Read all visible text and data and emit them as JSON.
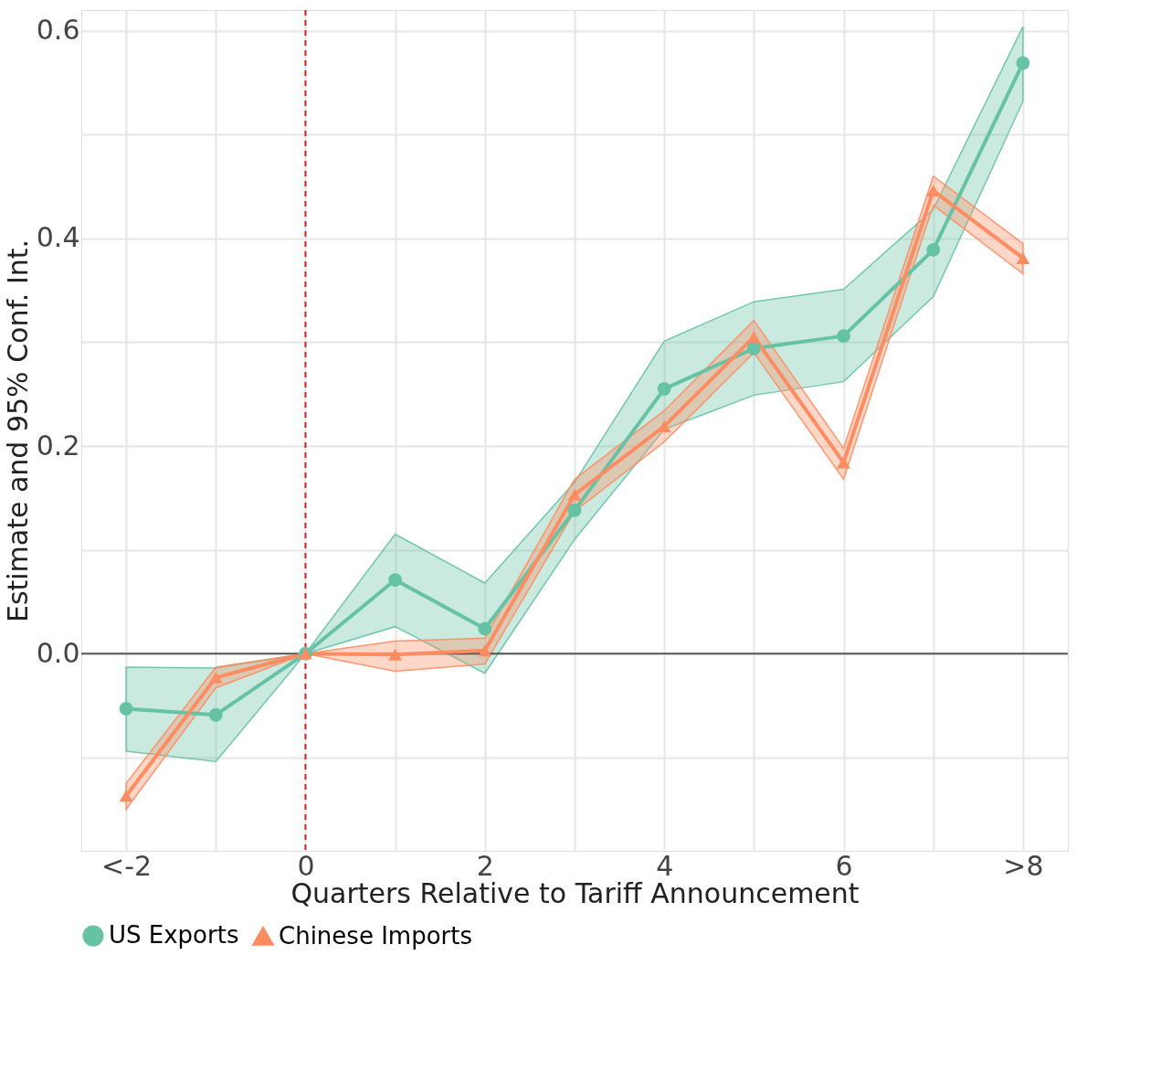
{
  "chart_data": {
    "type": "line",
    "xlabel": "Quarters Relative to Tariff Announcement",
    "ylabel": "Estimate and 95% Conf. Int.",
    "x": [
      -2,
      -1,
      0,
      1,
      2,
      3,
      4,
      5,
      6,
      7,
      8
    ],
    "xlim": [
      -2.5,
      8.5
    ],
    "xticks": [
      {
        "value": -2,
        "label": "<-2"
      },
      {
        "value": -1,
        "label": null
      },
      0,
      {
        "value": 1,
        "label": null
      },
      2,
      {
        "value": 3,
        "label": null
      },
      4,
      {
        "value": 5,
        "label": null
      },
      6,
      {
        "value": 7,
        "label": null
      },
      {
        "value": 8,
        "label": ">8"
      }
    ],
    "ylim": [
      -0.19,
      0.62
    ],
    "yticks": [
      {
        "value": -0.1,
        "label": null
      },
      {
        "value": 0,
        "label": "0.0"
      },
      {
        "value": 0.1,
        "label": null
      },
      0.2,
      {
        "value": 0.3,
        "label": null
      },
      0.4,
      {
        "value": 0.5,
        "label": null
      },
      0.6
    ],
    "series": [
      {
        "name": "US Exports",
        "color": "#66c2a5",
        "marker": "circle",
        "values": [
          -0.053,
          -0.059,
          0,
          0.071,
          0.024,
          0.138,
          0.255,
          0.294,
          0.306,
          0.389,
          0.569
        ],
        "lower": [
          -0.094,
          -0.104,
          0,
          0.026,
          -0.019,
          0.11,
          0.216,
          0.249,
          0.262,
          0.344,
          0.532
        ],
        "upper": [
          -0.013,
          -0.014,
          0,
          0.115,
          0.068,
          0.165,
          0.301,
          0.339,
          0.351,
          0.428,
          0.604
        ]
      },
      {
        "name": "Chinese Imports",
        "color": "#fc8d62",
        "marker": "triangle",
        "values": [
          -0.137,
          -0.023,
          0,
          -0.001,
          0.003,
          0.153,
          0.219,
          0.305,
          0.184,
          0.446,
          0.381
        ],
        "lower": [
          -0.15,
          -0.033,
          0,
          -0.017,
          -0.01,
          0.137,
          0.204,
          0.29,
          0.168,
          0.432,
          0.366
        ],
        "upper": [
          -0.125,
          -0.013,
          0,
          0.012,
          0.015,
          0.168,
          0.234,
          0.321,
          0.198,
          0.46,
          0.395
        ]
      }
    ],
    "ref_lines": [
      {
        "axis": "y",
        "value": 0,
        "label": null,
        "color": "#555555",
        "line_style": "solid"
      },
      {
        "axis": "x",
        "value": 0,
        "label": null,
        "color": "#e41a1c",
        "line_style": "dashed"
      }
    ],
    "grid": true,
    "legend": "bottom",
    "line_style": "solid"
  }
}
